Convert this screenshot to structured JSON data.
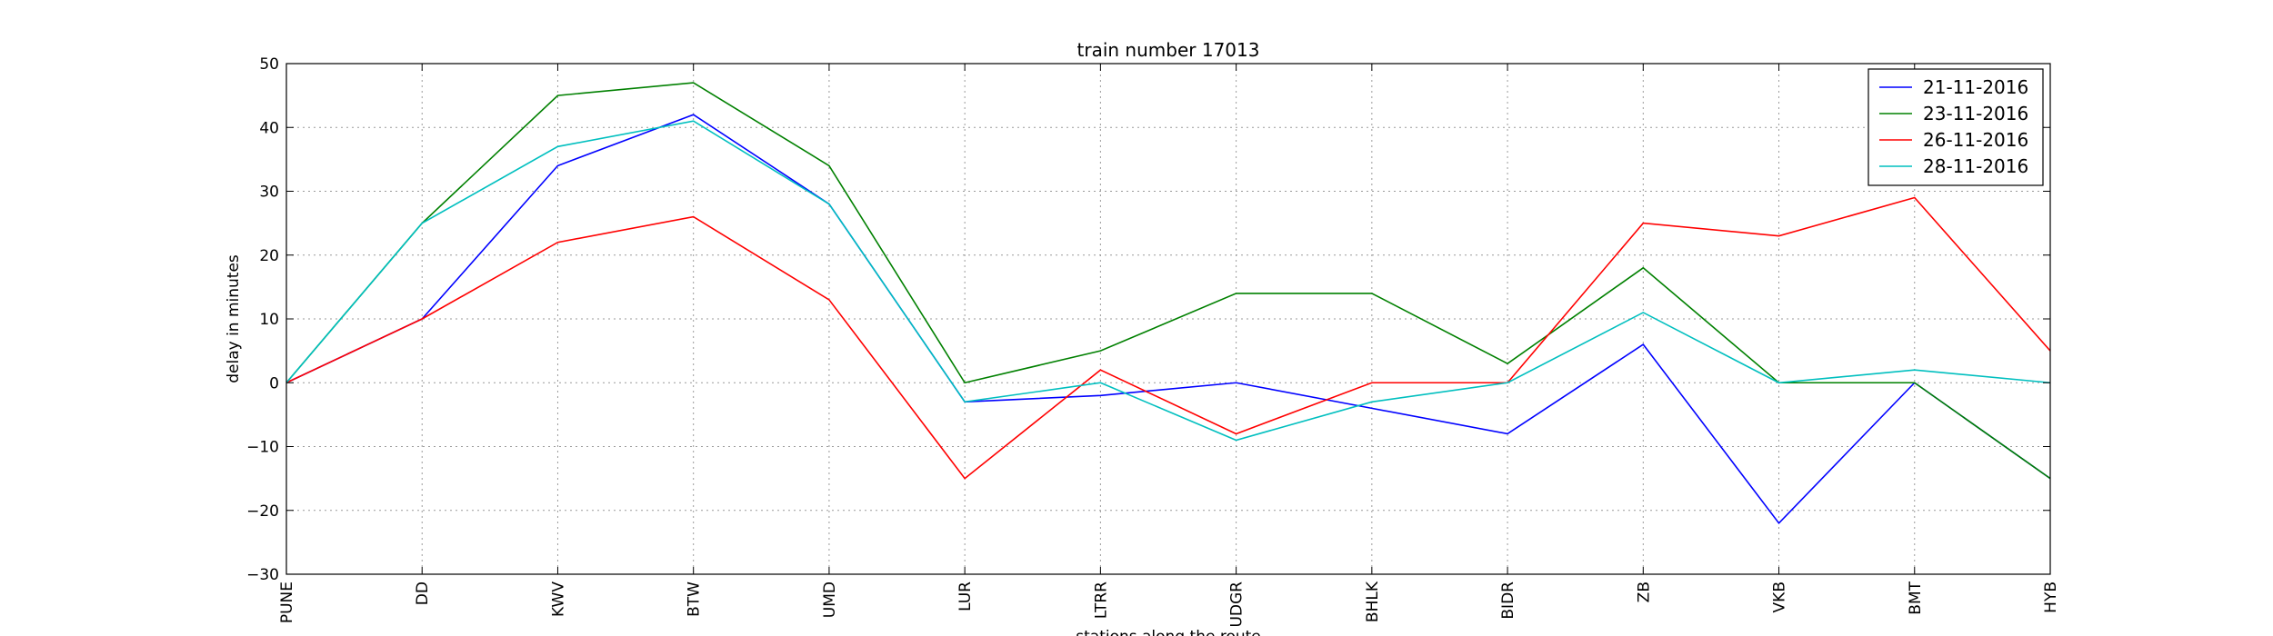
{
  "chart_data": {
    "type": "line",
    "title": "train number 17013",
    "xlabel": "stations along the route",
    "ylabel": "delay in minutes",
    "categories": [
      "PUNE",
      "DD",
      "KWV",
      "BTW",
      "UMD",
      "LUR",
      "LTRR",
      "UDGR",
      "BHLK",
      "BIDR",
      "ZB",
      "VKB",
      "BMT",
      "HYB"
    ],
    "ylim": [
      -30,
      50
    ],
    "yticks": [
      -30,
      -20,
      -10,
      0,
      10,
      20,
      30,
      40,
      50
    ],
    "grid": true,
    "legend_position": "top-right",
    "series": [
      {
        "name": "21-11-2016",
        "color": "#0000ff",
        "values": [
          0,
          10,
          34,
          42,
          28,
          -3,
          -2,
          0,
          -4,
          -8,
          6,
          -22,
          0,
          -15
        ]
      },
      {
        "name": "23-11-2016",
        "color": "#008000",
        "values": [
          0,
          25,
          45,
          47,
          34,
          0,
          5,
          14,
          14,
          3,
          18,
          0,
          0,
          -15
        ]
      },
      {
        "name": "26-11-2016",
        "color": "#ff0000",
        "values": [
          0,
          10,
          22,
          26,
          13,
          -15,
          2,
          -8,
          0,
          0,
          25,
          23,
          29,
          5
        ]
      },
      {
        "name": "28-11-2016",
        "color": "#00bfbf",
        "values": [
          0,
          25,
          37,
          41,
          28,
          -3,
          0,
          -9,
          -3,
          0,
          11,
          0,
          2,
          0
        ]
      }
    ]
  }
}
